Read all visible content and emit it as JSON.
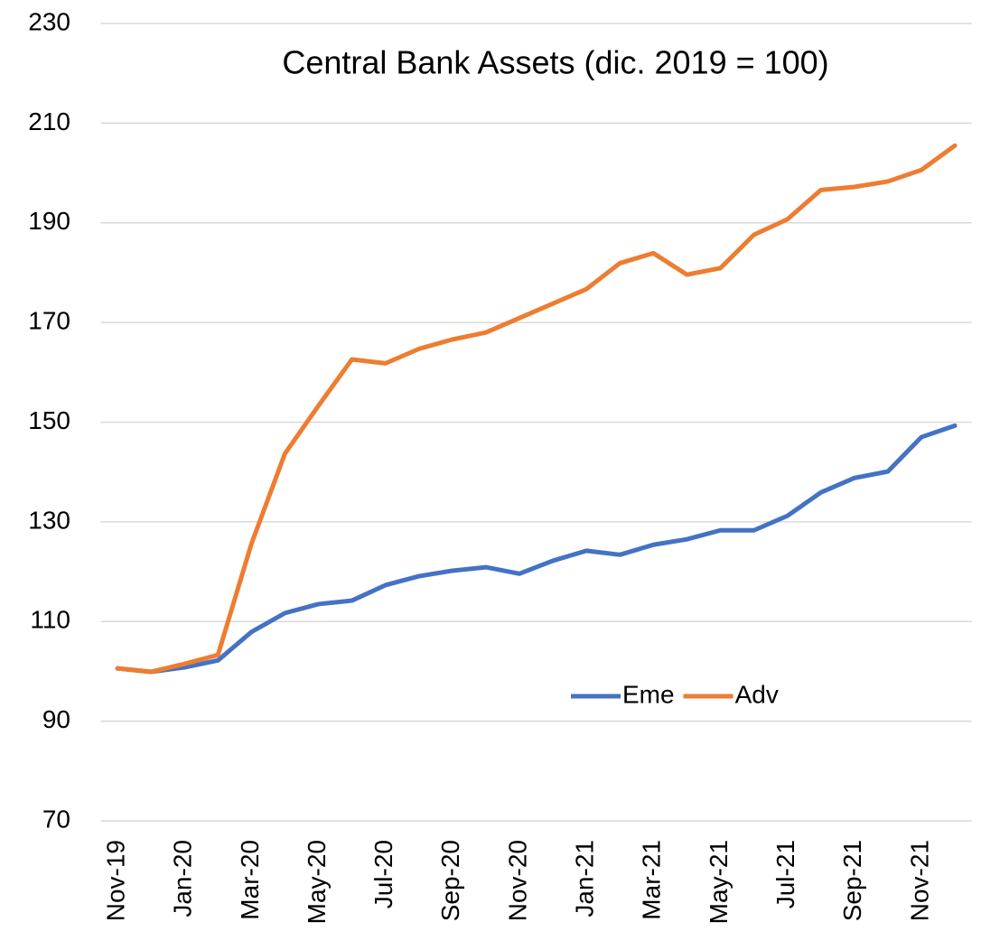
{
  "chart_data": {
    "type": "line",
    "title": "Central Bank Assets (dic. 2019 = 100)",
    "categories": [
      "Nov-19",
      null,
      "Jan-20",
      null,
      "Mar-20",
      null,
      "May-20",
      null,
      "Jul-20",
      null,
      "Sep-20",
      null,
      "Nov-20",
      null,
      "Jan-21",
      null,
      "Mar-21",
      null,
      "May-21",
      null,
      "Jul-21",
      null,
      "Sep-21",
      null,
      "Nov-21",
      null
    ],
    "series": [
      {
        "name": "Eme",
        "color": "#4472c4",
        "values": [
          100.6,
          99.9,
          100.8,
          102.2,
          107.9,
          111.7,
          113.5,
          114.2,
          117.3,
          119.1,
          120.2,
          120.9,
          119.6,
          122.2,
          124.2,
          123.4,
          125.4,
          126.5,
          128.3,
          128.3,
          131.2,
          135.9,
          138.8,
          140.1,
          147.0,
          149.3
        ]
      },
      {
        "name": "Adv",
        "color": "#ed7d31",
        "values": [
          100.6,
          99.9,
          101.5,
          103.3,
          125.6,
          143.7,
          153.3,
          162.6,
          161.8,
          164.7,
          166.6,
          168.0,
          170.9,
          173.8,
          176.7,
          181.9,
          183.9,
          179.6,
          180.9,
          187.6,
          190.7,
          196.6,
          197.2,
          198.3,
          200.6,
          205.5
        ]
      }
    ],
    "ylim": [
      70,
      230
    ],
    "yticks": [
      70,
      90,
      110,
      130,
      150,
      170,
      190,
      210,
      230
    ],
    "grid": true,
    "legend": "center-right"
  }
}
